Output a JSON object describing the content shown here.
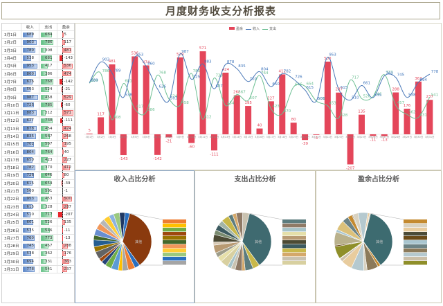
{
  "title": "月度财务收支分析报表",
  "table": {
    "headers": [
      "",
      "收入",
      "支出",
      "盈余"
    ],
    "rows": [
      [
        "3月1日",
        689,
        684,
        5
      ],
      [
        "3月2日",
        903,
        786,
        117
      ],
      [
        "3月3日",
        789,
        308,
        481
      ],
      [
        "3月4日",
        538,
        681,
        -143
      ],
      [
        "3月5日",
        953,
        417,
        536
      ],
      [
        "3月6日",
        860,
        386,
        474
      ],
      [
        "3月7日",
        626,
        768,
        -142
      ],
      [
        "3月8日",
        503,
        524,
        -21
      ],
      [
        "3月9日",
        987,
        458,
        529
      ],
      [
        "3月10日",
        725,
        785,
        -60
      ],
      [
        "3月11日",
        883,
        312,
        571
      ],
      [
        "3月12日",
        627,
        738,
        -111
      ],
      [
        "3月13日",
        878,
        454,
        424
      ],
      [
        "3月14日",
        835,
        567,
        268
      ],
      [
        "3月15日",
        702,
        507,
        195
      ],
      [
        "3月16日",
        804,
        764,
        40
      ],
      [
        "3月17日",
        650,
        423,
        227
      ],
      [
        "3月18日",
        782,
        370,
        412
      ],
      [
        "3月19日",
        726,
        646,
        80
      ],
      [
        "3月20日",
        615,
        654,
        -39
      ],
      [
        "3月21日",
        500,
        501,
        -1
      ],
      [
        "3月22日",
        953,
        453,
        500
      ],
      [
        "3月23日",
        615,
        328,
        287
      ],
      [
        "3月24日",
        510,
        717,
        -207
      ],
      [
        "3月25日",
        661,
        526,
        135
      ],
      [
        "3月26日",
        535,
        546,
        -11
      ],
      [
        "3月27日",
        760,
        773,
        -13
      ],
      [
        "3月28日",
        745,
        457,
        288
      ],
      [
        "3月29日",
        538,
        362,
        176
      ],
      [
        "3月30日",
        694,
        331,
        363
      ],
      [
        "3月31日",
        778,
        541,
        237
      ]
    ]
  },
  "combo_chart": {
    "legend": [
      "盈余",
      "收入",
      "支出"
    ],
    "colors": {
      "surplus": "#e4465a",
      "income": "#4a78b8",
      "expense": "#6cbf92"
    }
  },
  "pies": [
    {
      "title": "收入占比分析",
      "highlight_color": "#8a3a0e",
      "other_label": "其他"
    },
    {
      "title": "支出占比分析",
      "highlight_color": "#3f6a70",
      "other_label": "其他"
    },
    {
      "title": "盈余占比分析",
      "highlight_color": "#3d6b70",
      "other_label": "其他"
    }
  ],
  "chart_data": [
    {
      "type": "bar+line",
      "title": "",
      "categories": [
        "3月1日",
        "3月2日",
        "3月3日",
        "3月4日",
        "3月5日",
        "3月6日",
        "3月7日",
        "3月8日",
        "3月9日",
        "3月10日",
        "3月11日",
        "3月12日",
        "3月13日",
        "3月14日",
        "3月15日",
        "3月16日",
        "3月17日",
        "3月18日",
        "3月19日",
        "3月20日",
        "3月21日",
        "3月22日",
        "3月23日",
        "3月24日",
        "3月25日",
        "3月26日",
        "3月27日",
        "3月28日",
        "3月29日",
        "3月30日",
        "3月31日"
      ],
      "series": [
        {
          "name": "盈余",
          "kind": "bar",
          "values": [
            5,
            117,
            481,
            -143,
            536,
            474,
            -142,
            -21,
            529,
            -60,
            571,
            -111,
            424,
            268,
            195,
            40,
            227,
            412,
            80,
            -39,
            -1,
            500,
            287,
            -207,
            135,
            -11,
            -13,
            288,
            176,
            363,
            237
          ]
        },
        {
          "name": "收入",
          "kind": "line",
          "values": [
            689,
            903,
            789,
            538,
            953,
            860,
            626,
            503,
            987,
            725,
            883,
            627,
            878,
            835,
            702,
            804,
            650,
            782,
            726,
            615,
            500,
            953,
            615,
            510,
            661,
            535,
            760,
            745,
            538,
            694,
            778
          ]
        },
        {
          "name": "支出",
          "kind": "line",
          "values": [
            684,
            786,
            308,
            681,
            417,
            386,
            768,
            524,
            458,
            785,
            312,
            738,
            454,
            567,
            507,
            764,
            423,
            370,
            646,
            654,
            501,
            453,
            328,
            717,
            526,
            546,
            773,
            457,
            362,
            331,
            541
          ]
        }
      ],
      "legend_position": "top",
      "grid": false
    },
    {
      "type": "pie",
      "title": "收入占比分析",
      "note": "pie-of-pie; 31 daily slices of 收入"
    },
    {
      "type": "pie",
      "title": "支出占比分析",
      "note": "pie-of-pie; 31 daily slices of 支出"
    },
    {
      "type": "pie",
      "title": "盈余占比分析",
      "note": "pie-of-pie; daily slices of 盈余"
    }
  ]
}
